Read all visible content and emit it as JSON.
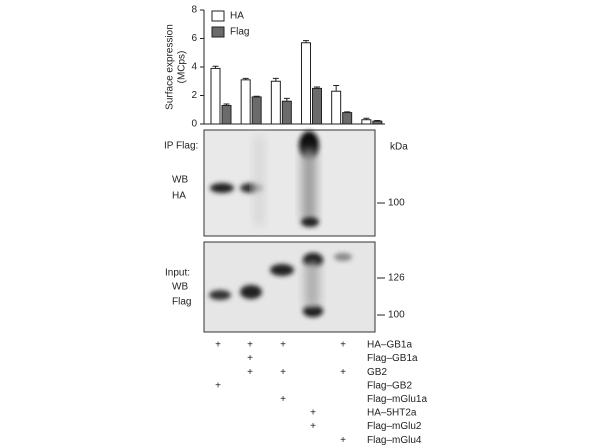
{
  "chart_data": {
    "type": "bar",
    "ylabel": [
      "Surface expression",
      "(MCps)"
    ],
    "categories": [
      null,
      null,
      null,
      null,
      null,
      null
    ],
    "series": [
      {
        "name": "HA",
        "color": "#ffffff",
        "values": [
          3.9,
          3.1,
          3.0,
          5.7,
          2.3,
          0.3
        ],
        "errors": [
          0.15,
          0.1,
          0.2,
          0.15,
          0.4,
          0.1
        ]
      },
      {
        "name": "Flag",
        "color": "#6b6b6b",
        "values": [
          1.3,
          1.9,
          1.6,
          2.5,
          0.8,
          0.2
        ],
        "errors": [
          0.1,
          0.05,
          0.2,
          0.1,
          0.05,
          0.05
        ]
      }
    ],
    "ylim": [
      0,
      8
    ],
    "yticks": [
      0,
      2,
      4,
      6,
      8
    ],
    "legend": "top-left"
  },
  "blots": {
    "ip": {
      "labels": [
        "IP Flag:",
        "WB",
        "HA"
      ],
      "unit": "kDa",
      "markers": [
        "100"
      ]
    },
    "input": {
      "labels": [
        "Input:",
        "WB",
        "Flag"
      ],
      "markers": [
        "126",
        "100"
      ]
    }
  },
  "conditions": [
    {
      "label": "HA–GB1a",
      "cells": [
        "+",
        "+",
        "+",
        null,
        "+",
        null
      ]
    },
    {
      "label": "Flag–GB1a",
      "cells": [
        null,
        "+",
        null,
        null,
        null,
        null
      ]
    },
    {
      "label": "GB2",
      "cells": [
        null,
        "+",
        "+",
        null,
        "+",
        null
      ]
    },
    {
      "label": "Flag–GB2",
      "cells": [
        "+",
        null,
        null,
        null,
        null,
        null
      ]
    },
    {
      "label": "Flag–mGlu1a",
      "cells": [
        null,
        null,
        "+",
        null,
        null,
        null
      ]
    },
    {
      "label": "HA–5HT2a",
      "cells": [
        null,
        null,
        null,
        "+",
        null,
        null
      ]
    },
    {
      "label": "Flag–mGlu2",
      "cells": [
        null,
        null,
        null,
        "+",
        null,
        null
      ]
    },
    {
      "label": "Flag–mGlu4",
      "cells": [
        null,
        null,
        null,
        null,
        "+",
        null
      ]
    }
  ]
}
